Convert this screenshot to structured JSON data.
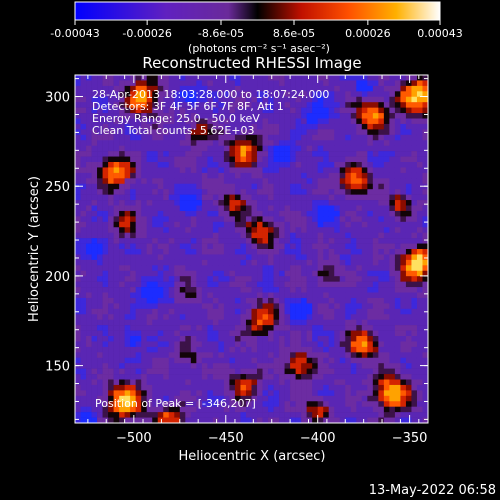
{
  "colorbar": {
    "ticks": [
      "-0.00043",
      "-0.00026",
      "-8.6e-05",
      "8.6e-05",
      "0.00026",
      "0.00043"
    ],
    "tick_values": [
      -0.00043,
      -0.00026,
      -8.6e-05,
      8.6e-05,
      0.00026,
      0.00043
    ],
    "range": [
      -0.00043,
      0.00043
    ],
    "unit_label": "(photons cm⁻² s⁻¹ asec⁻²)"
  },
  "chart_data": {
    "type": "heatmap",
    "title": "Reconstructed RHESSI Image",
    "xlabel": "Heliocentric X (arcsec)",
    "ylabel": "Heliocentric Y (arcsec)",
    "xlim": [
      -532,
      -340
    ],
    "ylim": [
      118,
      312
    ],
    "xticks": [
      -500,
      -450,
      -400,
      -350
    ],
    "yticks": [
      150,
      200,
      250,
      300
    ],
    "xtick_labels": [
      "−500",
      "−450",
      "−400",
      "−350"
    ],
    "ytick_labels": [
      "150",
      "200",
      "250",
      "300"
    ],
    "peak": [
      -346,
      207
    ],
    "annotations": [
      "28-Apr-2013 18:03:28.000 to 18:07:24.000",
      "Detectors: 3F 4F 5F 6F 7F 8F, Att 1",
      "Energy Range: 25.0 - 50.0 keV",
      "Clean    Total counts: 5.62E+03"
    ],
    "peak_label": "Position of Peak = [-346,207]",
    "colormap": [
      "#0018ff",
      "#5020c0",
      "#6a2aa8",
      "#3a0f4a",
      "#000000",
      "#b01000",
      "#ff4000",
      "#ffa000",
      "#ffe060",
      "#ffffff"
    ]
  },
  "footer": {
    "date": "13-May-2022 06:58"
  }
}
